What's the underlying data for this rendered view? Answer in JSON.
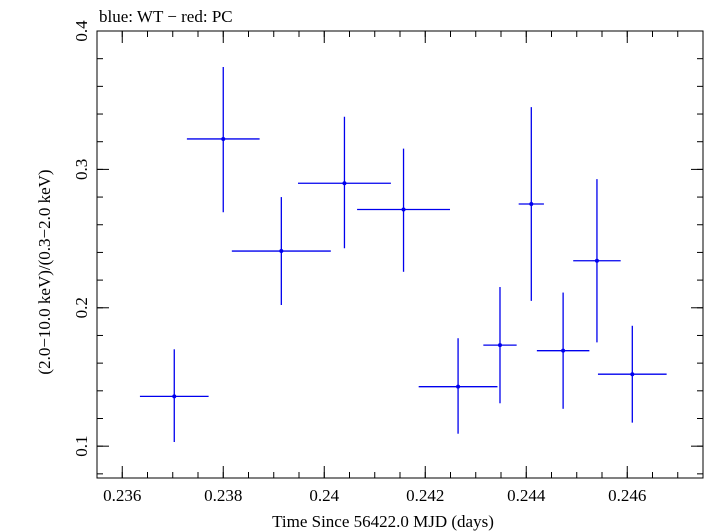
{
  "chart_data": {
    "type": "scatter",
    "title": "blue: WT − red: PC",
    "xlabel": "Time Since 56422.0 MJD (days)",
    "ylabel": "(2.0−10.0 keV)/(0.3−2.0 keV)",
    "xlim": [
      0.2355,
      0.2475
    ],
    "ylim": [
      0.077,
      0.4
    ],
    "x_ticks": [
      "0.236",
      "0.238",
      "0.24",
      "0.242",
      "0.244",
      "0.246"
    ],
    "y_ticks": [
      "0.1",
      "0.2",
      "0.3",
      "0.4"
    ],
    "series": [
      {
        "color": "#0000ee",
        "points": [
          {
            "x": 0.23703,
            "xerr": 0.00068,
            "y": 0.136,
            "ylo": 0.103,
            "yhi": 0.17
          },
          {
            "x": 0.238,
            "xerr": 0.00072,
            "y": 0.322,
            "ylo": 0.269,
            "yhi": 0.374
          },
          {
            "x": 0.23915,
            "xerr": 0.00098,
            "y": 0.241,
            "ylo": 0.202,
            "yhi": 0.28
          },
          {
            "x": 0.2404,
            "xerr": 0.00092,
            "y": 0.29,
            "ylo": 0.243,
            "yhi": 0.338
          },
          {
            "x": 0.24157,
            "xerr": 0.00092,
            "y": 0.271,
            "ylo": 0.226,
            "yhi": 0.315
          },
          {
            "x": 0.24265,
            "xerr": 0.00078,
            "y": 0.143,
            "ylo": 0.109,
            "yhi": 0.178
          },
          {
            "x": 0.24348,
            "xerr": 0.00033,
            "y": 0.173,
            "ylo": 0.131,
            "yhi": 0.215
          },
          {
            "x": 0.2441,
            "xerr": 0.00025,
            "y": 0.275,
            "ylo": 0.205,
            "yhi": 0.345
          },
          {
            "x": 0.24473,
            "xerr": 0.00052,
            "y": 0.169,
            "ylo": 0.127,
            "yhi": 0.211
          },
          {
            "x": 0.2454,
            "xerr": 0.00047,
            "y": 0.234,
            "ylo": 0.175,
            "yhi": 0.293
          },
          {
            "x": 0.2461,
            "xerr": 0.00068,
            "y": 0.152,
            "ylo": 0.117,
            "yhi": 0.187
          }
        ]
      }
    ]
  }
}
